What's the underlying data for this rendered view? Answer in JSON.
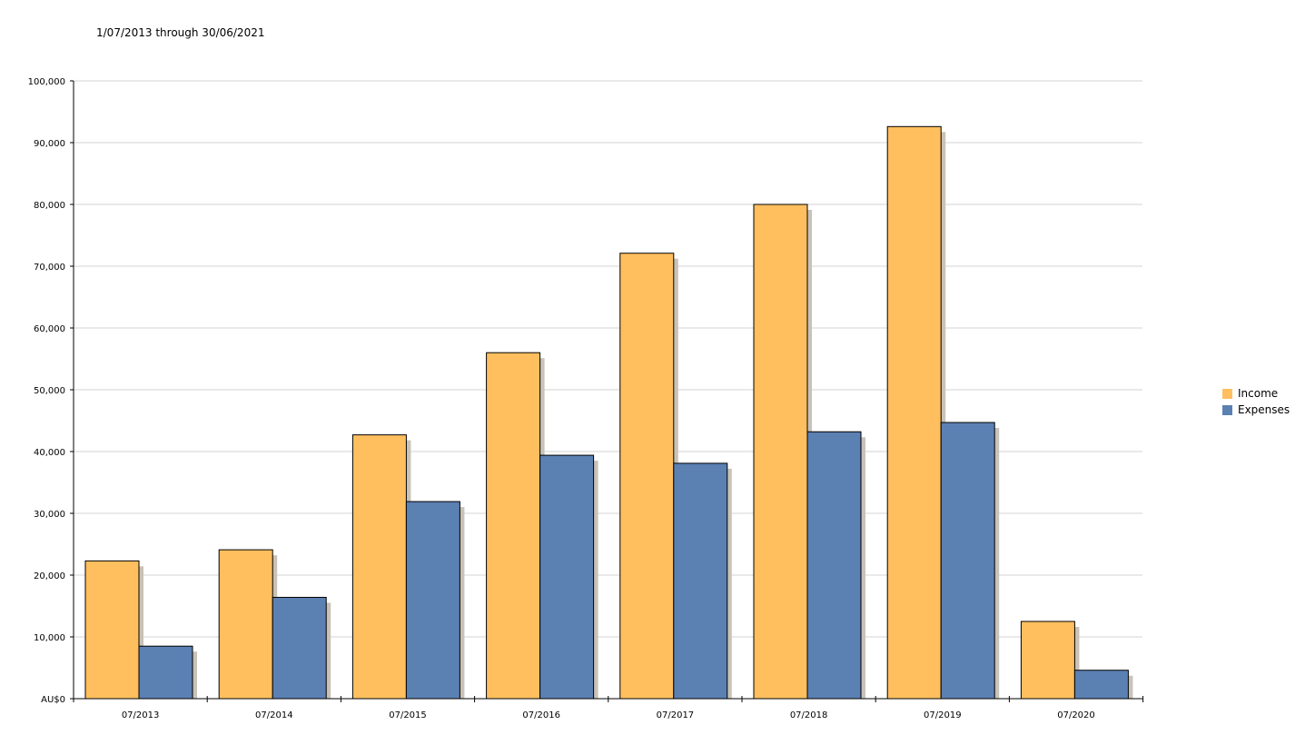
{
  "subtitle": "1/07/2013 through 30/06/2021",
  "colors": {
    "income": "#FFBF5F",
    "expenses": "#5B80B2",
    "shadow": "#C8C2B8",
    "grid": "#D3D3D3"
  },
  "chart_data": {
    "type": "bar",
    "title": "",
    "subtitle": "1/07/2013 through 30/06/2021",
    "xlabel": "",
    "ylabel": "",
    "ylim": [
      0,
      100000
    ],
    "y_ticks": [
      "AU$0",
      "10,000",
      "20,000",
      "30,000",
      "40,000",
      "50,000",
      "60,000",
      "70,000",
      "80,000",
      "90,000",
      "100,000"
    ],
    "categories": [
      "07/2013",
      "07/2014",
      "07/2015",
      "07/2016",
      "07/2017",
      "07/2018",
      "07/2019",
      "07/2020"
    ],
    "series": [
      {
        "name": "Income",
        "values": [
          22300,
          24100,
          42700,
          56000,
          72100,
          80000,
          92600,
          12500
        ]
      },
      {
        "name": "Expenses",
        "values": [
          8500,
          16400,
          31900,
          39400,
          38100,
          43200,
          44700,
          4600
        ]
      }
    ],
    "grid": true,
    "legend_position": "right"
  }
}
